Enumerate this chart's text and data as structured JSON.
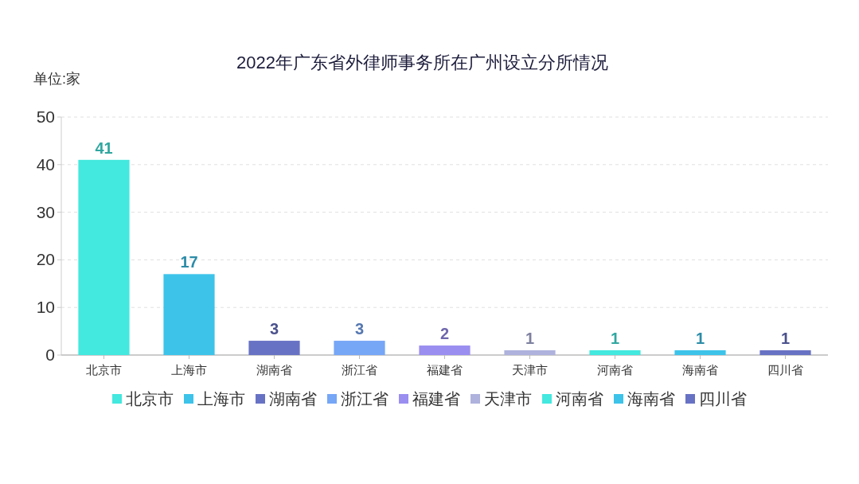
{
  "chart_data": {
    "type": "bar",
    "title": "2022年广东省外律师事务所在广州设立分所情况",
    "ylabel": "单位:家",
    "categories": [
      "北京市",
      "上海市",
      "湖南省",
      "浙江省",
      "福建省",
      "天津市",
      "河南省",
      "海南省",
      "四川省"
    ],
    "series": [
      {
        "name": "北京市",
        "color": "#43e8de",
        "values": [
          41,
          null,
          null,
          null,
          null,
          null,
          null,
          null,
          null
        ]
      },
      {
        "name": "上海市",
        "color": "#3dc3ea",
        "values": [
          null,
          17,
          null,
          null,
          null,
          null,
          null,
          null,
          null
        ]
      },
      {
        "name": "湖南省",
        "color": "#6872c4",
        "values": [
          null,
          null,
          3,
          null,
          null,
          null,
          null,
          null,
          null
        ]
      },
      {
        "name": "浙江省",
        "color": "#76a6f6",
        "values": [
          null,
          null,
          null,
          3,
          null,
          null,
          null,
          null,
          null
        ]
      },
      {
        "name": "福建省",
        "color": "#9a8ef0",
        "values": [
          null,
          null,
          null,
          null,
          2,
          null,
          null,
          null,
          null
        ]
      },
      {
        "name": "天津市",
        "color": "#aeb2dc",
        "values": [
          null,
          null,
          null,
          null,
          null,
          1,
          null,
          null,
          null
        ]
      },
      {
        "name": "河南省",
        "color": "#43e8de",
        "values": [
          null,
          null,
          null,
          null,
          null,
          null,
          1,
          null,
          null
        ]
      },
      {
        "name": "海南省",
        "color": "#3dc3ea",
        "values": [
          null,
          null,
          null,
          null,
          null,
          null,
          null,
          1,
          null
        ]
      },
      {
        "name": "四川省",
        "color": "#6872c4",
        "values": [
          null,
          null,
          null,
          null,
          null,
          null,
          null,
          null,
          1
        ]
      }
    ],
    "stacked": true,
    "ylim": [
      0,
      50
    ],
    "yticks": [
      0,
      10,
      20,
      30,
      40,
      50
    ],
    "grid": "y",
    "legend": "bottom",
    "data_labels": true
  }
}
